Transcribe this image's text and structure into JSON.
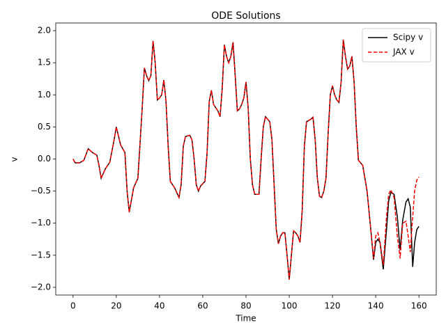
{
  "chart_data": {
    "type": "line",
    "title": "ODE Solutions",
    "xlabel": "Time",
    "ylabel": "v",
    "x": [
      0,
      1,
      3,
      5,
      7,
      9,
      11,
      12,
      13,
      15,
      17,
      19,
      20,
      22,
      24,
      25,
      26,
      28,
      30,
      32,
      33,
      34,
      35,
      36,
      37,
      38,
      39,
      40,
      41,
      42,
      43,
      44,
      45,
      47,
      49,
      50,
      51,
      52,
      54,
      55,
      56,
      57,
      58,
      59,
      61,
      62,
      63,
      64,
      65,
      67,
      68,
      69,
      70,
      71,
      72,
      73,
      74,
      75,
      76,
      77,
      78,
      79,
      80,
      81,
      82,
      83,
      84,
      86,
      87,
      88,
      89,
      91,
      92,
      93,
      94,
      95,
      96,
      97,
      98,
      99,
      100,
      101,
      102,
      103,
      104,
      105,
      106,
      107,
      108,
      110,
      111,
      112,
      113,
      114,
      115,
      116,
      117,
      118,
      119,
      120,
      121,
      122,
      123,
      124,
      125,
      126,
      127,
      128,
      129,
      130,
      131,
      132,
      134,
      136,
      138,
      139,
      140,
      141,
      142,
      143.5,
      145,
      146,
      147,
      148.5,
      150,
      151.3,
      152.5,
      154,
      155,
      156,
      157.1,
      158,
      159,
      160
    ],
    "series": [
      {
        "name": "Scipy v",
        "color": "#000000",
        "dash": "solid",
        "values": [
          0,
          -0.06,
          -0.06,
          -0.02,
          0.16,
          0.1,
          0.06,
          -0.1,
          -0.3,
          -0.15,
          -0.05,
          0.3,
          0.5,
          0.22,
          0.1,
          -0.5,
          -0.83,
          -0.45,
          -0.3,
          0.8,
          1.42,
          1.3,
          1.22,
          1.3,
          1.84,
          1.5,
          0.92,
          0.95,
          1.0,
          1.23,
          0.9,
          0.2,
          -0.35,
          -0.45,
          -0.6,
          -0.4,
          0.2,
          0.35,
          0.37,
          0.3,
          0.0,
          -0.4,
          -0.5,
          -0.42,
          -0.35,
          0.1,
          0.9,
          1.07,
          0.85,
          0.75,
          0.66,
          1.1,
          1.78,
          1.6,
          1.5,
          1.6,
          1.82,
          1.3,
          0.75,
          0.78,
          0.85,
          0.95,
          1.2,
          0.8,
          0.0,
          -0.4,
          -0.55,
          -0.55,
          0.0,
          0.5,
          0.66,
          0.58,
          0.3,
          -0.4,
          -1.1,
          -1.32,
          -1.2,
          -1.15,
          -1.15,
          -1.5,
          -1.88,
          -1.5,
          -1.12,
          -1.15,
          -1.2,
          -1.3,
          -0.8,
          0.2,
          0.58,
          0.62,
          0.65,
          0.3,
          -0.3,
          -0.58,
          -0.6,
          -0.5,
          -0.3,
          0.4,
          1.0,
          1.14,
          1.0,
          0.92,
          0.88,
          1.2,
          1.86,
          1.6,
          1.4,
          1.45,
          1.6,
          1.2,
          0.5,
          -0.02,
          -0.1,
          -0.5,
          -1.2,
          -1.57,
          -1.3,
          -1.25,
          -1.3,
          -1.72,
          -1.1,
          -0.65,
          -0.52,
          -0.55,
          -0.9,
          -1.42,
          -0.95,
          -0.67,
          -0.62,
          -0.75,
          -1.68,
          -1.3,
          -1.1,
          -1.05
        ]
      },
      {
        "name": "JAX v",
        "color": "#ff0000",
        "dash": "dashed",
        "values": [
          0,
          -0.06,
          -0.06,
          -0.02,
          0.16,
          0.1,
          0.06,
          -0.1,
          -0.3,
          -0.15,
          -0.05,
          0.3,
          0.5,
          0.22,
          0.1,
          -0.5,
          -0.83,
          -0.45,
          -0.3,
          0.8,
          1.42,
          1.3,
          1.22,
          1.3,
          1.84,
          1.5,
          0.92,
          0.95,
          1.0,
          1.23,
          0.9,
          0.2,
          -0.35,
          -0.45,
          -0.6,
          -0.4,
          0.2,
          0.35,
          0.37,
          0.3,
          0.0,
          -0.4,
          -0.5,
          -0.42,
          -0.35,
          0.1,
          0.9,
          1.07,
          0.85,
          0.75,
          0.66,
          1.1,
          1.78,
          1.6,
          1.5,
          1.6,
          1.82,
          1.3,
          0.75,
          0.78,
          0.85,
          0.95,
          1.2,
          0.8,
          0.0,
          -0.4,
          -0.55,
          -0.55,
          0.0,
          0.5,
          0.66,
          0.58,
          0.3,
          -0.4,
          -1.1,
          -1.32,
          -1.2,
          -1.15,
          -1.15,
          -1.5,
          -1.88,
          -1.5,
          -1.12,
          -1.15,
          -1.2,
          -1.3,
          -0.8,
          0.2,
          0.58,
          0.62,
          0.65,
          0.3,
          -0.3,
          -0.58,
          -0.6,
          -0.5,
          -0.3,
          0.4,
          1.0,
          1.14,
          1.0,
          0.92,
          0.88,
          1.2,
          1.86,
          1.6,
          1.4,
          1.45,
          1.6,
          1.2,
          0.5,
          -0.02,
          -0.1,
          -0.5,
          -1.2,
          -1.55,
          -1.2,
          -1.15,
          -1.3,
          -1.65,
          -0.9,
          -0.55,
          -0.48,
          -0.6,
          -1.2,
          -1.55,
          -1.0,
          -0.97,
          -1.2,
          -1.45,
          -0.9,
          -0.5,
          -0.33,
          -0.28
        ]
      }
    ],
    "xlim": [
      -8,
      168
    ],
    "ylim": [
      -2.12,
      2.12
    ],
    "xticks": [
      0,
      20,
      40,
      60,
      80,
      100,
      120,
      140,
      160
    ],
    "yticks": [
      {
        "value": -2,
        "label": "−2.0"
      },
      {
        "value": -1.5,
        "label": "−1.5"
      },
      {
        "value": -1,
        "label": "−1.0"
      },
      {
        "value": -0.5,
        "label": "−0.5"
      },
      {
        "value": 0,
        "label": "0.0"
      },
      {
        "value": 0.5,
        "label": "0.5"
      },
      {
        "value": 1,
        "label": "1.0"
      },
      {
        "value": 1.5,
        "label": "1.5"
      },
      {
        "value": 2,
        "label": "2.0"
      }
    ],
    "grid": false,
    "legend": "upper right"
  }
}
